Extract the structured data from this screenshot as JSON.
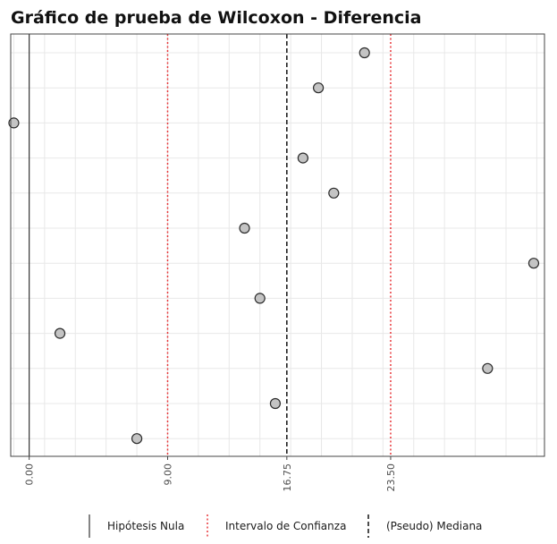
{
  "chart_data": {
    "type": "scatter",
    "title": "Gráfico de prueba de Wilcoxon - Diferencia",
    "xlabel": "",
    "ylabel": "",
    "xlim": [
      -1.2,
      33.5
    ],
    "x_ticks": [
      0,
      9,
      16.75,
      23.5
    ],
    "x_tick_labels": [
      "0.00",
      "9.00",
      "16.75",
      "23.50"
    ],
    "grid": true,
    "points": [
      {
        "x": 21.8,
        "row": 1
      },
      {
        "x": 18.8,
        "row": 2
      },
      {
        "x": -1.0,
        "row": 3
      },
      {
        "x": 17.8,
        "row": 4
      },
      {
        "x": 19.8,
        "row": 5
      },
      {
        "x": 14.0,
        "row": 6
      },
      {
        "x": 32.8,
        "row": 7
      },
      {
        "x": 15.0,
        "row": 8
      },
      {
        "x": 2.0,
        "row": 9
      },
      {
        "x": 29.8,
        "row": 10
      },
      {
        "x": 16.0,
        "row": 11
      },
      {
        "x": 7.0,
        "row": 12
      }
    ],
    "reference_lines": {
      "null_hypothesis": 0,
      "confidence_interval": [
        9,
        23.5
      ],
      "pseudo_median": 16.75
    },
    "legend": {
      "position": "bottom",
      "items": [
        {
          "label": "Hipótesis Nula",
          "style": "solid",
          "color": "#333333"
        },
        {
          "label": "Intervalo de Confianza",
          "style": "dotted",
          "color": "#e8373a"
        },
        {
          "label": "(Pseudo) Mediana",
          "style": "dashed",
          "color": "#111111"
        }
      ]
    },
    "colors": {
      "point_fill": "#c4c4c4",
      "point_stroke": "#2b2b2b",
      "ci_line": "#e8373a",
      "median_line": "#111111",
      "null_line": "#333333",
      "grid": "#e8e8e8",
      "panel_border": "#444444"
    }
  }
}
